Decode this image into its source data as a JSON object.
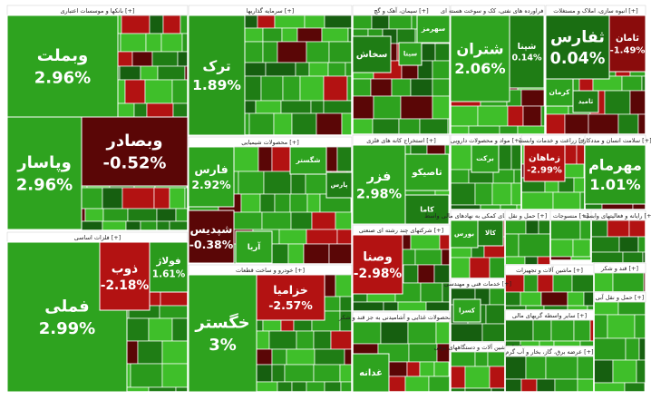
{
  "chart_data": {
    "type": "treemap",
    "groups": [
      {
        "name": "بانکها و موسسات اعتباری [+]",
        "tiles": [
          {
            "label": "وبملت",
            "value": 2.96,
            "value_label": "2.96%",
            "color": "#2ea31f"
          },
          {
            "label": "وبصادر",
            "value": -0.52,
            "value_label": "-0.52%",
            "color": "#5a0606"
          },
          {
            "label": "وپاسار",
            "value": 2.96,
            "value_label": "2.96%",
            "color": "#2ea31f"
          }
        ]
      },
      {
        "name": "سرمایه گذاریها [+]",
        "tiles": [
          {
            "label": "ترک",
            "value": 1.89,
            "value_label": "1.89%",
            "color": "#2a9a1c"
          }
        ]
      },
      {
        "name": "سیمان، آهک و گچ [+]",
        "tiles": [
          {
            "label": "سهرمز",
            "color": "#2ea31f"
          },
          {
            "label": "سخاش",
            "color": "#1f7d15"
          },
          {
            "label": "سیتا",
            "color": "#2ea31f"
          }
        ]
      },
      {
        "name": "فراورده های نفتی، کک و سوخت هسته ای [+]",
        "tiles": [
          {
            "label": "شتران",
            "value": 2.06,
            "value_label": "2.06%",
            "color": "#2ea31f"
          },
          {
            "label": "شپنا",
            "value": 0.14,
            "value_label": "0.14%",
            "color": "#1f7d15"
          }
        ]
      },
      {
        "name": "انبوه سازی، املاک و مستغلات [+]",
        "tiles": [
          {
            "label": "ثفارس",
            "value": 0.04,
            "value_label": "0.04%",
            "color": "#1a6e12"
          },
          {
            "label": "ثامان",
            "value": -1.49,
            "value_label": "-1.49%",
            "color": "#8a0c0c"
          },
          {
            "label": "کرمان",
            "color": "#2ea31f"
          },
          {
            "label": "ثامید",
            "color": "#1f7d15"
          }
        ]
      },
      {
        "name": "محصولات شیمیایی [+]",
        "tiles": [
          {
            "label": "فارس",
            "value": 2.92,
            "value_label": "2.92%",
            "color": "#2ea31f"
          },
          {
            "label": "شپدیس",
            "value": -0.38,
            "value_label": "-0.38%",
            "color": "#5a0606"
          },
          {
            "label": "شگستر",
            "color": "#2ea31f"
          },
          {
            "label": "آریا",
            "color": "#2ea31f"
          },
          {
            "label": "پارس",
            "color": "#1f7d15"
          }
        ]
      },
      {
        "name": "استخراج کانه های فلزی [+]",
        "tiles": [
          {
            "label": "فزر",
            "value": 2.98,
            "value_label": "2.98%",
            "color": "#2ea31f"
          },
          {
            "label": "تاصیکو",
            "color": "#2ea31f"
          },
          {
            "label": "کاما",
            "color": "#1f7d15"
          }
        ]
      },
      {
        "name": "فلزات اساسی [+]",
        "tiles": [
          {
            "label": "فملی",
            "value": 2.99,
            "value_label": "2.99%",
            "color": "#2ea31f"
          },
          {
            "label": "ذوب",
            "value": -2.18,
            "value_label": "-2.18%",
            "color": "#b31212"
          },
          {
            "label": "فولاژ",
            "value": 1.61,
            "value_label": "1.61%",
            "color": "#2a9a1c"
          }
        ]
      },
      {
        "name": "خودرو و ساخت قطعات [+]",
        "tiles": [
          {
            "label": "خگستر",
            "value": 3,
            "value_label": "3%",
            "color": "#2ea31f"
          },
          {
            "label": "خزامیا",
            "value": -2.57,
            "value_label": "-2.57%",
            "color": "#b31212"
          }
        ]
      },
      {
        "name": "شرکتهای چند رشته ای صنعتی [+]",
        "tiles": [
          {
            "label": "وصنا",
            "value": -2.98,
            "value_label": "-2.98%",
            "color": "#b31212"
          }
        ]
      },
      {
        "name": "محصولات غذایی و آشامیدنی به جز قند و شکر [+]",
        "tiles": [
          {
            "label": "غدانه",
            "color": "#2ea31f"
          }
        ]
      },
      {
        "name": "مواد و محصولات دارویی [+]",
        "tiles": [
          {
            "label": "برکت",
            "color": "#2ea31f"
          }
        ]
      },
      {
        "name": "زراعت و خدمات وابسته [+]",
        "tiles": [
          {
            "label": "زماهان",
            "value": -2.99,
            "value_label": "-2.99%",
            "color": "#b31212"
          }
        ]
      },
      {
        "name": "سلامت انسان و مددکاری [+]",
        "tiles": [
          {
            "label": "مهرمام",
            "value": 1.01,
            "value_label": "1.01%",
            "color": "#2a9a1c"
          }
        ]
      },
      {
        "name": "فعالیتهای کمکی به نهادهای مالی واسط [+]",
        "tiles": [
          {
            "label": "بورس",
            "color": "#2ea31f"
          },
          {
            "label": "کالا",
            "color": "#1f7d15"
          }
        ]
      },
      {
        "name": "حمل و نقل [+]",
        "tiles": []
      },
      {
        "name": "منسوجات [+]",
        "tiles": []
      },
      {
        "name": "رایانه و فعالیتهای وابسته [+]",
        "tiles": []
      },
      {
        "name": "ماشین آلات و تجهیزات [+]",
        "tiles": []
      },
      {
        "name": "قند و شکر [+]",
        "tiles": []
      },
      {
        "name": "خدمات فنی و مهندسی [+]",
        "tiles": [
          {
            "label": "کسرا",
            "color": "#2ea31f"
          }
        ]
      },
      {
        "name": "سایر واسطه گریهای مالی [+]",
        "tiles": []
      },
      {
        "name": "ماشین آلات و دستگاههای برقی [+]",
        "tiles": []
      },
      {
        "name": "عرضه برق، گاز، بخار و آب گرم [+]",
        "tiles": []
      },
      {
        "name": "حمل و نقل آبی [+]",
        "tiles": []
      }
    ]
  }
}
